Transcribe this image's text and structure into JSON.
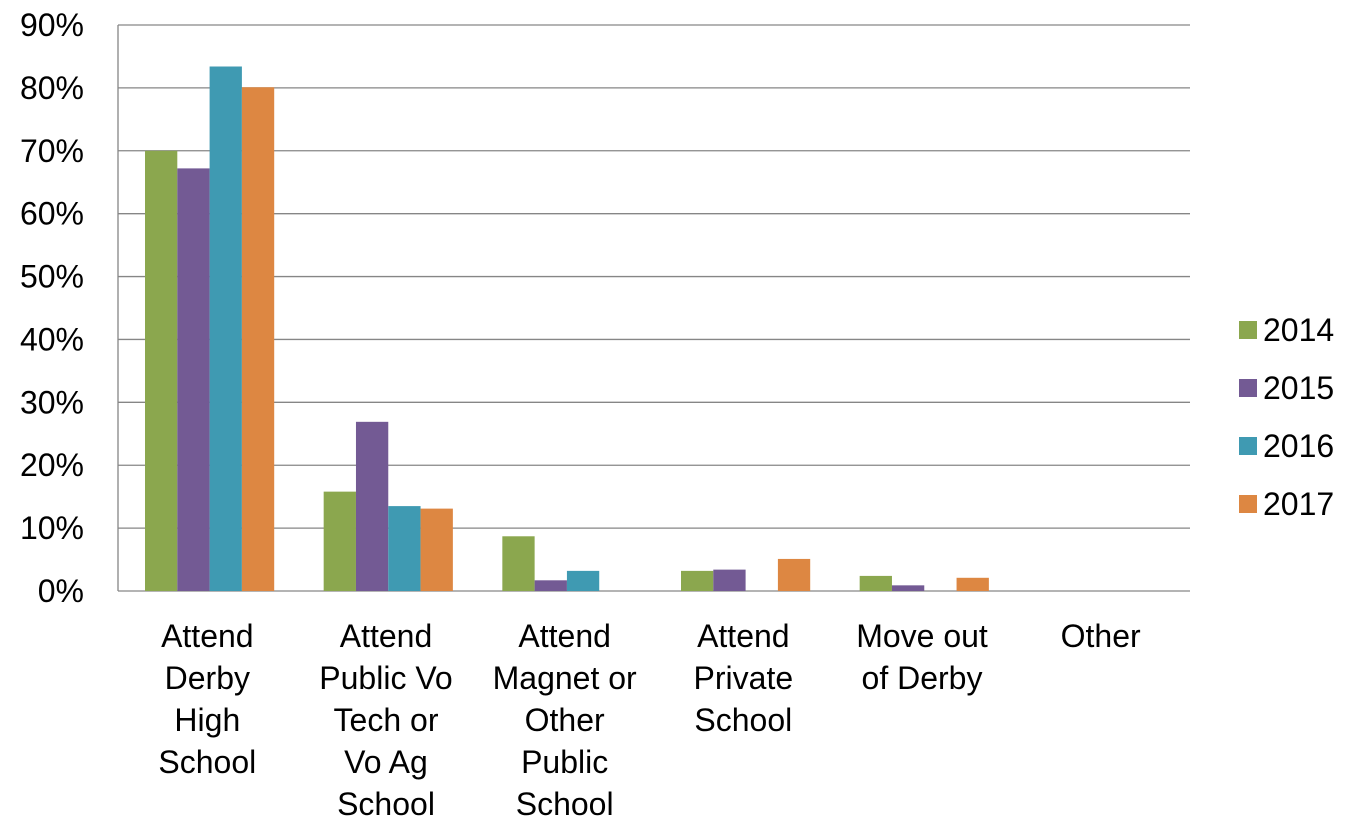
{
  "chart_data": {
    "type": "bar",
    "categories": [
      [
        "Attend",
        "Derby",
        "High",
        "School"
      ],
      [
        "Attend",
        "Public Vo",
        "Tech or",
        "Vo Ag",
        "School"
      ],
      [
        "Attend",
        "Magnet or",
        "Other",
        "Public",
        "School"
      ],
      [
        "Attend",
        "Private",
        "School"
      ],
      [
        "Move out",
        "of Derby"
      ],
      [
        "Other"
      ]
    ],
    "series": [
      {
        "name": "2014",
        "color": "#8BA74E",
        "values": [
          70,
          15.8,
          8.7,
          3.2,
          2.4,
          0
        ]
      },
      {
        "name": "2015",
        "color": "#735A94",
        "values": [
          67.2,
          26.9,
          1.7,
          3.4,
          0.9,
          0
        ]
      },
      {
        "name": "2016",
        "color": "#3F9AB2",
        "values": [
          83.4,
          13.5,
          3.2,
          0,
          0,
          0
        ]
      },
      {
        "name": "2017",
        "color": "#DD8742",
        "values": [
          80.1,
          13.1,
          0,
          5.1,
          2.1,
          0
        ]
      }
    ],
    "ylim": [
      0,
      90
    ],
    "yticks": [
      "0%",
      "10%",
      "20%",
      "30%",
      "40%",
      "50%",
      "60%",
      "70%",
      "80%",
      "90%"
    ],
    "grid": true,
    "legend": "right"
  }
}
